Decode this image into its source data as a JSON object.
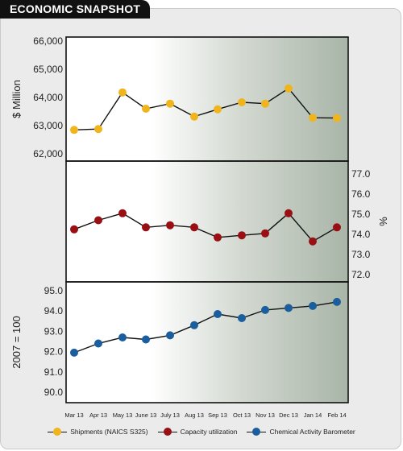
{
  "title": "ECONOMIC SNAPSHOT",
  "colors": {
    "shipments": "#f0b41c",
    "capacity": "#9a0f14",
    "barometer": "#1b5e9e",
    "panel_shade": "#a9b5a8"
  },
  "chart_data": [
    {
      "type": "line",
      "ylabel": "$ Million",
      "ylim": [
        62000,
        66000
      ],
      "yticks": [
        "62,000",
        "63,000",
        "64,000",
        "65,000",
        "66,000"
      ],
      "x": [
        "Mar 13",
        "Apr 13",
        "May 13",
        "June 13",
        "July 13",
        "Aug 13",
        "Sep 13",
        "Oct 13",
        "Nov 13",
        "Dec 13",
        "Jan 14",
        "Feb 14"
      ],
      "series": [
        {
          "name": "Shipments (NAICS S325)",
          "values": [
            62850,
            62880,
            64180,
            63600,
            63780,
            63320,
            63580,
            63830,
            63780,
            64320,
            63280,
            63270
          ]
        }
      ]
    },
    {
      "type": "line",
      "ylabel": "%",
      "ylim": [
        72.0,
        77.0
      ],
      "yticks": [
        "72.0",
        "73.0",
        "74.0",
        "75.0",
        "76.0",
        "77.0"
      ],
      "x": [
        "Mar 13",
        "Apr 13",
        "May 13",
        "June 13",
        "July 13",
        "Aug 13",
        "Sep 13",
        "Oct 13",
        "Nov 13",
        "Dec 13",
        "Jan 14",
        "Feb 14"
      ],
      "series": [
        {
          "name": "Capacity utilization",
          "values": [
            74.25,
            74.7,
            75.05,
            74.35,
            74.45,
            74.35,
            73.85,
            73.95,
            74.05,
            75.05,
            73.65,
            74.35
          ]
        }
      ]
    },
    {
      "type": "line",
      "ylabel": "2007 = 100",
      "ylim": [
        90.0,
        95.0
      ],
      "yticks": [
        "90.0",
        "91.0",
        "92.0",
        "93.0",
        "94.0",
        "95.0"
      ],
      "x": [
        "Mar 13",
        "Apr 13",
        "May 13",
        "June 13",
        "July 13",
        "Aug 13",
        "Sep 13",
        "Oct 13",
        "Nov 13",
        "Dec 13",
        "Jan 14",
        "Feb 14"
      ],
      "series": [
        {
          "name": "Chemical Activity Barometer",
          "values": [
            91.95,
            92.4,
            92.7,
            92.6,
            92.8,
            93.3,
            93.85,
            93.65,
            94.05,
            94.15,
            94.25,
            94.45
          ]
        }
      ]
    }
  ],
  "legend": [
    {
      "label": "Shipments (NAICS S325)",
      "color_key": "shipments"
    },
    {
      "label": "Capacity utilization",
      "color_key": "capacity"
    },
    {
      "label": "Chemical Activity Barometer",
      "color_key": "barometer"
    }
  ]
}
